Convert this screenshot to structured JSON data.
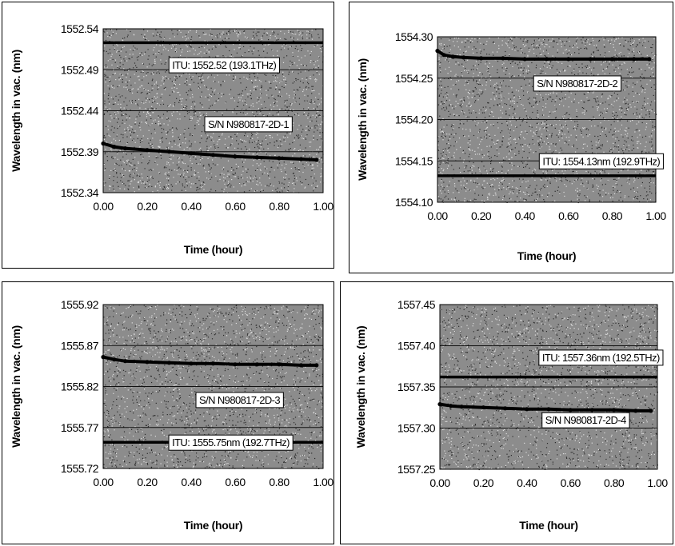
{
  "colors": {
    "plot_background": "#8c8c8c",
    "gridline": "#111111",
    "series": "#000000"
  },
  "chart_data": [
    {
      "type": "line",
      "xlabel": "Time (hour)",
      "ylabel": "Wavelength in vac. (nm)",
      "xlim": [
        0,
        1
      ],
      "ylim": [
        1552.34,
        1552.54
      ],
      "x_ticks": [
        "0.00",
        "0.20",
        "0.40",
        "0.60",
        "0.80",
        "1.00"
      ],
      "y_ticks": [
        "1552.34",
        "1552.39",
        "1552.44",
        "1552.49",
        "1552.54"
      ],
      "grid": true,
      "series": [
        {
          "name": "ITU: 1552.52 (193.1THz)",
          "style": "reference",
          "x": [
            0,
            1
          ],
          "y": [
            1552.523,
            1552.523
          ]
        },
        {
          "name": "S/N N980817-2D-1",
          "style": "measured",
          "x": [
            0,
            0.05,
            0.1,
            0.2,
            0.3,
            0.4,
            0.5,
            0.6,
            0.7,
            0.8,
            0.9,
            0.97
          ],
          "y": [
            1552.4,
            1552.396,
            1552.394,
            1552.392,
            1552.39,
            1552.388,
            1552.386,
            1552.384,
            1552.383,
            1552.382,
            1552.381,
            1552.38
          ]
        }
      ],
      "annotations": [
        "ITU: 1552.52 (193.1THz)",
        "S/N N980817-2D-1"
      ]
    },
    {
      "type": "line",
      "xlabel": "Time (hour)",
      "ylabel": "Wavelength in vac. (nm)",
      "xlim": [
        0,
        1
      ],
      "ylim": [
        1554.1,
        1554.3
      ],
      "x_ticks": [
        "0.00",
        "0.20",
        "0.40",
        "0.60",
        "0.80",
        "1.00"
      ],
      "y_ticks": [
        "1554.10",
        "1554.15",
        "1554.20",
        "1554.25",
        "1554.30"
      ],
      "grid": true,
      "series": [
        {
          "name": "ITU: 1554.13nm (192.9THz)",
          "style": "reference",
          "x": [
            0,
            1
          ],
          "y": [
            1554.132,
            1554.132
          ]
        },
        {
          "name": "S/N N980817-2D-2",
          "style": "measured",
          "x": [
            0,
            0.03,
            0.07,
            0.12,
            0.2,
            0.3,
            0.4,
            0.5,
            0.6,
            0.7,
            0.8,
            0.9,
            0.97
          ],
          "y": [
            1554.283,
            1554.278,
            1554.276,
            1554.275,
            1554.274,
            1554.274,
            1554.273,
            1554.273,
            1554.273,
            1554.273,
            1554.273,
            1554.273,
            1554.273
          ]
        }
      ],
      "annotations": [
        "S/N N980817-2D-2",
        "ITU: 1554.13nm (192.9THz)"
      ]
    },
    {
      "type": "line",
      "xlabel": "Time (hour)",
      "ylabel": "Wavelength in vac. (nm)",
      "xlim": [
        0,
        1
      ],
      "ylim": [
        1555.72,
        1555.92
      ],
      "x_ticks": [
        "0.00",
        "0.20",
        "0.40",
        "0.60",
        "0.80",
        "1.00"
      ],
      "y_ticks": [
        "1555.72",
        "1555.77",
        "1555.82",
        "1555.87",
        "1555.92"
      ],
      "grid": true,
      "series": [
        {
          "name": "ITU: 1555.75nm (192.7THz)",
          "style": "reference",
          "x": [
            0,
            1
          ],
          "y": [
            1555.752,
            1555.752
          ]
        },
        {
          "name": "S/N N980817-2D-3",
          "style": "measured",
          "x": [
            0,
            0.05,
            0.1,
            0.2,
            0.3,
            0.4,
            0.5,
            0.6,
            0.7,
            0.8,
            0.9,
            0.97
          ],
          "y": [
            1555.856,
            1555.853,
            1555.851,
            1555.85,
            1555.849,
            1555.848,
            1555.848,
            1555.847,
            1555.847,
            1555.847,
            1555.846,
            1555.846
          ]
        }
      ],
      "annotations": [
        "S/N N980817-2D-3",
        "ITU: 1555.75nm (192.7THz)"
      ]
    },
    {
      "type": "line",
      "xlabel": "Time (hour)",
      "ylabel": "Wavelength in vac. (nm)",
      "xlim": [
        0,
        1
      ],
      "ylim": [
        1557.25,
        1557.45
      ],
      "x_ticks": [
        "0.00",
        "0.20",
        "0.40",
        "0.60",
        "0.80",
        "1.00"
      ],
      "y_ticks": [
        "1557.25",
        "1557.30",
        "1557.35",
        "1557.40",
        "1557.45"
      ],
      "grid": true,
      "series": [
        {
          "name": "ITU: 1557.36nm (192.5THz)",
          "style": "reference",
          "x": [
            0,
            1
          ],
          "y": [
            1557.362,
            1557.362
          ]
        },
        {
          "name": "S/N N980817-2D-4",
          "style": "measured",
          "x": [
            0,
            0.05,
            0.1,
            0.2,
            0.3,
            0.4,
            0.5,
            0.6,
            0.7,
            0.8,
            0.9,
            0.97
          ],
          "y": [
            1557.329,
            1557.327,
            1557.326,
            1557.325,
            1557.324,
            1557.323,
            1557.323,
            1557.322,
            1557.322,
            1557.322,
            1557.321,
            1557.321
          ]
        }
      ],
      "annotations": [
        "ITU: 1557.36nm (192.5THz)",
        "S/N N980817-2D-4"
      ]
    }
  ]
}
